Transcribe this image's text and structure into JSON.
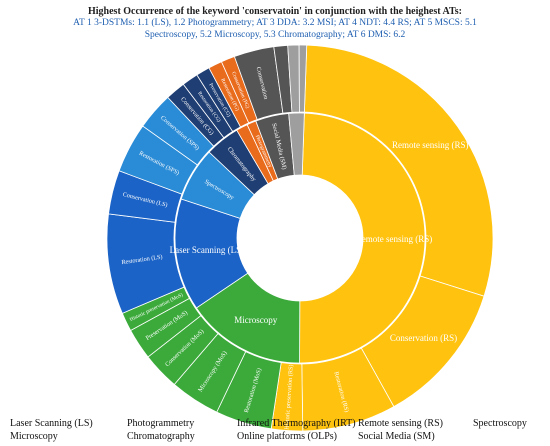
{
  "chart_data": {
    "type": "pie",
    "title": "Highest Occurrence of the keyword 'conservatoin' in conjunction with the heighest ATs:",
    "subtitle": "AT 1 3-DSTMs: 1.1 (LS), 1.2 Photogrammetry; AT 3 DDA: 3.2 MSI; AT 4 NDT: 4.4 RS; AT 5 MSCS: 5.1 Spectroscopy, 5.2 Microscopy, 5.3 Chromatography; AT 6 DMS: 6.2",
    "inner_ring": [
      {
        "label": "Remote sensing (RS)",
        "value": 49.5,
        "color": "#FFC20E"
      },
      {
        "label": "Microscopy",
        "value": 15.5,
        "color": "#3BAA3B"
      },
      {
        "label": "Laser Scanning (LS)",
        "value": 14.5,
        "color": "#1B63C6"
      },
      {
        "label": "Spectroscopy",
        "value": 7,
        "color": "#2A8BD6"
      },
      {
        "label": "Chromatography",
        "value": 4.5,
        "color": "#1F3E73"
      },
      {
        "label": "",
        "value": 1.5,
        "color": "#E96B1C"
      },
      {
        "label": "Photogrammetry",
        "value": 1.2,
        "color": "#E96B1C"
      },
      {
        "label": "Social Media (SM)",
        "value": 4.3,
        "color": "#555555"
      },
      {
        "label": "",
        "value": 2,
        "color": "#9E9E9E"
      }
    ],
    "outer_ring": [
      {
        "label": "Remote sensing (RS)",
        "value": 28,
        "color": "#FFC20E"
      },
      {
        "label": "Conservation (RS)",
        "value": 11.5,
        "color": "#FFC20E"
      },
      {
        "label": "Restoration (RS)",
        "value": 7.5,
        "color": "#FFC20E"
      },
      {
        "label": "Historic preservation (RS)",
        "value": 2.5,
        "color": "#FFC20E"
      },
      {
        "label": "Restoration (MoS)",
        "value": 4.5,
        "color": "#3BAA3B"
      },
      {
        "label": "Microscopy (MoS)",
        "value": 4,
        "color": "#3BAA3B"
      },
      {
        "label": "Conservation (MoS)",
        "value": 3,
        "color": "#3BAA3B"
      },
      {
        "label": "Preservation (MoS)",
        "value": 2.5,
        "color": "#3BAA3B"
      },
      {
        "label": "Historic preservation (MoS)",
        "value": 1.5,
        "color": "#3BAA3B"
      },
      {
        "label": "Restoration (LS)",
        "value": 8,
        "color": "#1B63C6"
      },
      {
        "label": "Conservation (LS)",
        "value": 3.5,
        "color": "#1B63C6"
      },
      {
        "label": "Restoration (SPS)",
        "value": 4,
        "color": "#2A8BD6"
      },
      {
        "label": "Conservation (SPS)",
        "value": 3,
        "color": "#2A8BD6"
      },
      {
        "label": "Conservation (CG)",
        "value": 1.6,
        "color": "#1F3E73"
      },
      {
        "label": "Restoration (CG)",
        "value": 1.3,
        "color": "#1F3E73"
      },
      {
        "label": "Preservation (CG)",
        "value": 1.1,
        "color": "#1F3E73"
      },
      {
        "label": "Restoration (PG)",
        "value": 1.1,
        "color": "#E96B1C"
      },
      {
        "label": "Conservation (PG)",
        "value": 1.1,
        "color": "#E96B1C"
      },
      {
        "label": "Conservation",
        "value": 3.2,
        "color": "#555555"
      },
      {
        "label": "",
        "value": 1.1,
        "color": "#555555"
      },
      {
        "label": "",
        "value": 0.9,
        "color": "#9E9E9E"
      },
      {
        "label": "",
        "value": 0.6,
        "color": "#9E9E9E"
      }
    ],
    "legend": {
      "position": "bottom",
      "items": [
        "Laser Scanning (LS)",
        "Photogrammetry",
        "Infrared Thermography (IRT)",
        "Remote sensing (RS)",
        "Spectroscopy",
        "Microscopy",
        "Chromatography",
        "Online platforms (OLPs)",
        "Social Media (SM)"
      ]
    }
  }
}
